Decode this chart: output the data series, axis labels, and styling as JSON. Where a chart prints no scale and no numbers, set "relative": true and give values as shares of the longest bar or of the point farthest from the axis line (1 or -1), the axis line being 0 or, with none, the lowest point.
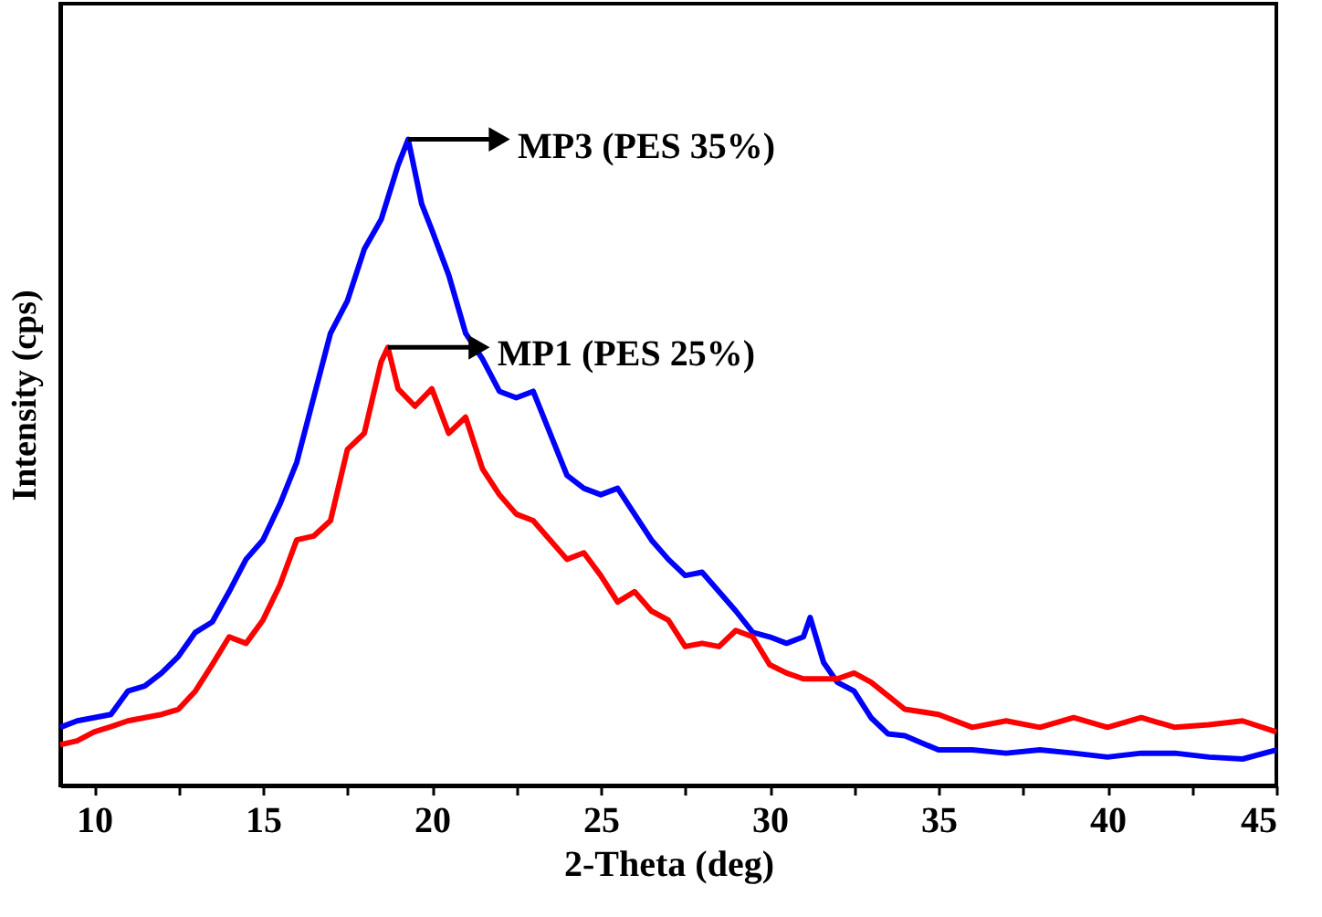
{
  "chart_data": {
    "type": "line",
    "xlabel": "2-Theta (deg)",
    "ylabel": "Intensity (cps)",
    "relative": true,
    "grid": false,
    "marker": "none",
    "line_style": "solid",
    "xlim": [
      9,
      45
    ],
    "xticks": [
      10,
      {
        "value": 12.5,
        "label": null
      },
      15,
      {
        "value": 17.5,
        "label": null
      },
      20,
      {
        "value": 22.5,
        "label": null
      },
      25,
      {
        "value": 27.5,
        "label": null
      },
      30,
      {
        "value": 32.5,
        "label": null
      },
      35,
      {
        "value": 37.5,
        "label": null
      },
      40,
      {
        "value": 42.5,
        "label": null
      },
      45
    ],
    "series": [
      {
        "color": "#0000ff",
        "x": [
          9,
          9.5,
          10,
          10.5,
          11,
          11.5,
          12,
          12.5,
          13,
          13.5,
          14,
          14.5,
          15,
          15.5,
          16,
          16.5,
          17,
          17.5,
          18,
          18.5,
          19,
          19.3,
          19.7,
          20,
          20.5,
          21,
          21.5,
          22,
          22.5,
          23,
          23.5,
          24,
          24.5,
          25,
          25.5,
          26,
          26.5,
          27,
          27.5,
          28,
          28.5,
          29,
          29.5,
          30,
          30.5,
          31,
          31.2,
          31.6,
          32,
          32.5,
          33,
          33.5,
          34,
          35,
          36,
          37,
          38,
          39,
          40,
          41,
          42,
          43,
          44,
          45
        ],
        "values": [
          0.09,
          0.1,
          0.105,
          0.11,
          0.146,
          0.154,
          0.174,
          0.2,
          0.237,
          0.253,
          0.3,
          0.35,
          0.38,
          0.435,
          0.5,
          0.6,
          0.7,
          0.75,
          0.83,
          0.876,
          0.96,
          1.0,
          0.9,
          0.86,
          0.79,
          0.7,
          0.66,
          0.61,
          0.6,
          0.61,
          0.545,
          0.48,
          0.46,
          0.45,
          0.46,
          0.42,
          0.38,
          0.35,
          0.325,
          0.33,
          0.3,
          0.27,
          0.237,
          0.23,
          0.22,
          0.23,
          0.26,
          0.19,
          0.16,
          0.146,
          0.105,
          0.08,
          0.077,
          0.055,
          0.055,
          0.05,
          0.055,
          0.05,
          0.044,
          0.05,
          0.05,
          0.044,
          0.041,
          0.055
        ]
      },
      {
        "color": "#ff0000",
        "x": [
          9,
          9.5,
          10,
          10.5,
          11,
          11.5,
          12,
          12.5,
          13,
          13.5,
          14,
          14.5,
          15,
          15.5,
          16,
          16.5,
          17,
          17.5,
          18,
          18.5,
          18.7,
          19,
          19.5,
          20,
          20.5,
          21,
          21.5,
          22,
          22.5,
          23,
          23.5,
          24,
          24.5,
          25,
          25.5,
          26,
          26.5,
          27,
          27.5,
          28,
          28.5,
          29,
          29.5,
          30,
          30.5,
          31,
          31.5,
          32,
          32.5,
          33,
          34,
          35,
          36,
          37,
          38,
          39,
          40,
          41,
          42,
          43,
          44,
          45
        ],
        "values": [
          0.063,
          0.069,
          0.083,
          0.091,
          0.1,
          0.105,
          0.11,
          0.118,
          0.146,
          0.187,
          0.23,
          0.22,
          0.256,
          0.31,
          0.38,
          0.386,
          0.41,
          0.52,
          0.545,
          0.656,
          0.678,
          0.614,
          0.587,
          0.614,
          0.545,
          0.57,
          0.49,
          0.45,
          0.42,
          0.41,
          0.38,
          0.35,
          0.36,
          0.325,
          0.284,
          0.3,
          0.27,
          0.256,
          0.215,
          0.22,
          0.215,
          0.24,
          0.23,
          0.187,
          0.174,
          0.165,
          0.165,
          0.165,
          0.174,
          0.16,
          0.118,
          0.11,
          0.09,
          0.1,
          0.09,
          0.105,
          0.09,
          0.105,
          0.09,
          0.094,
          0.1,
          0.083
        ]
      }
    ],
    "annotations": [
      {
        "text": "MP3 (PES 35%)",
        "x": 19.3,
        "y": 1.0
      },
      {
        "text": "MP1 (PES 25%)",
        "x": 18.7,
        "y": 0.678
      }
    ]
  }
}
